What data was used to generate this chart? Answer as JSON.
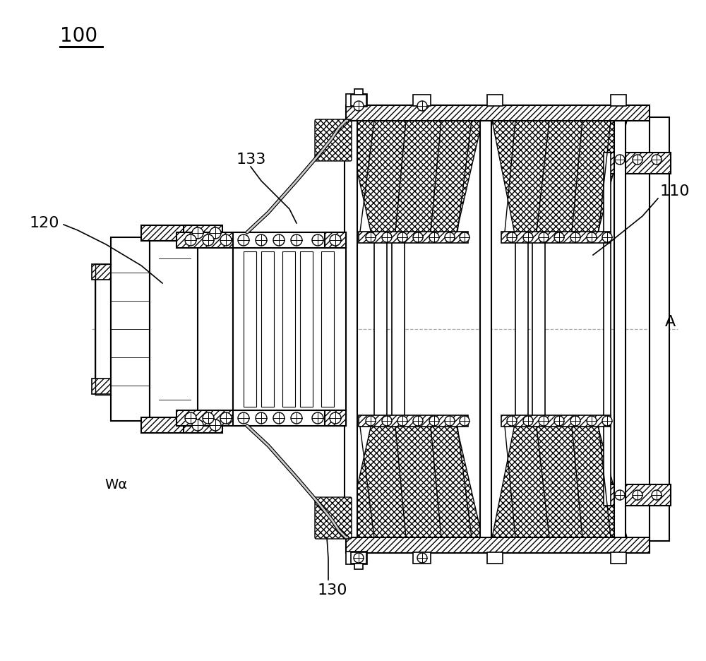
{
  "bg_color": "#ffffff",
  "lc": "#000000",
  "label_100": "100",
  "label_110": "110",
  "label_120": "120",
  "label_130": "130",
  "label_133": "133",
  "label_A": "A",
  "label_Wa": "Wα",
  "fig_width": 10.0,
  "fig_height": 9.37
}
